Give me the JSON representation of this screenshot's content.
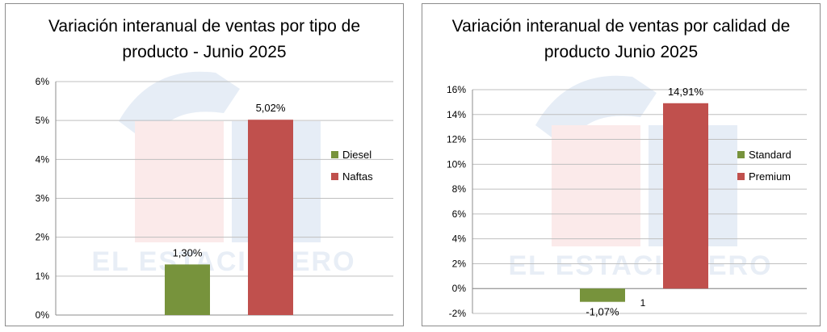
{
  "colors": {
    "diesel": "#77933c",
    "naftas": "#c0504d",
    "standard": "#77933c",
    "premium": "#c0504d",
    "gridline": "#bfbfbf"
  },
  "chart_data": [
    {
      "type": "bar",
      "title": "Variación interanual  de ventas por tipo de producto - Junio 2025",
      "series": [
        {
          "name": "Diesel",
          "values": [
            1.3
          ],
          "label": "1,30%"
        },
        {
          "name": "Naftas",
          "values": [
            5.02
          ],
          "label": "5,02%"
        }
      ],
      "ylim": [
        0,
        6
      ],
      "yticks": [
        0,
        1,
        2,
        3,
        4,
        5,
        6
      ],
      "ytick_labels": [
        "0%",
        "1%",
        "2%",
        "3%",
        "4%",
        "5%",
        "6%"
      ],
      "grid": true,
      "legend": "right"
    },
    {
      "type": "bar",
      "title": "Variación interanual de ventas por calidad de producto Junio 2025",
      "categories": [
        "1"
      ],
      "series": [
        {
          "name": "Standard",
          "values": [
            -1.07
          ],
          "label": "-1,07%"
        },
        {
          "name": "Premium",
          "values": [
            14.91
          ],
          "label": "14,91%"
        }
      ],
      "ylim": [
        -2,
        16
      ],
      "yticks": [
        -2,
        0,
        2,
        4,
        6,
        8,
        10,
        12,
        14,
        16
      ],
      "ytick_labels": [
        "-2%",
        "0%",
        "2%",
        "4%",
        "6%",
        "8%",
        "10%",
        "12%",
        "14%",
        "16%"
      ],
      "grid": true,
      "legend": "right"
    }
  ],
  "watermark": {
    "text": "EL ESTACIONERO"
  }
}
